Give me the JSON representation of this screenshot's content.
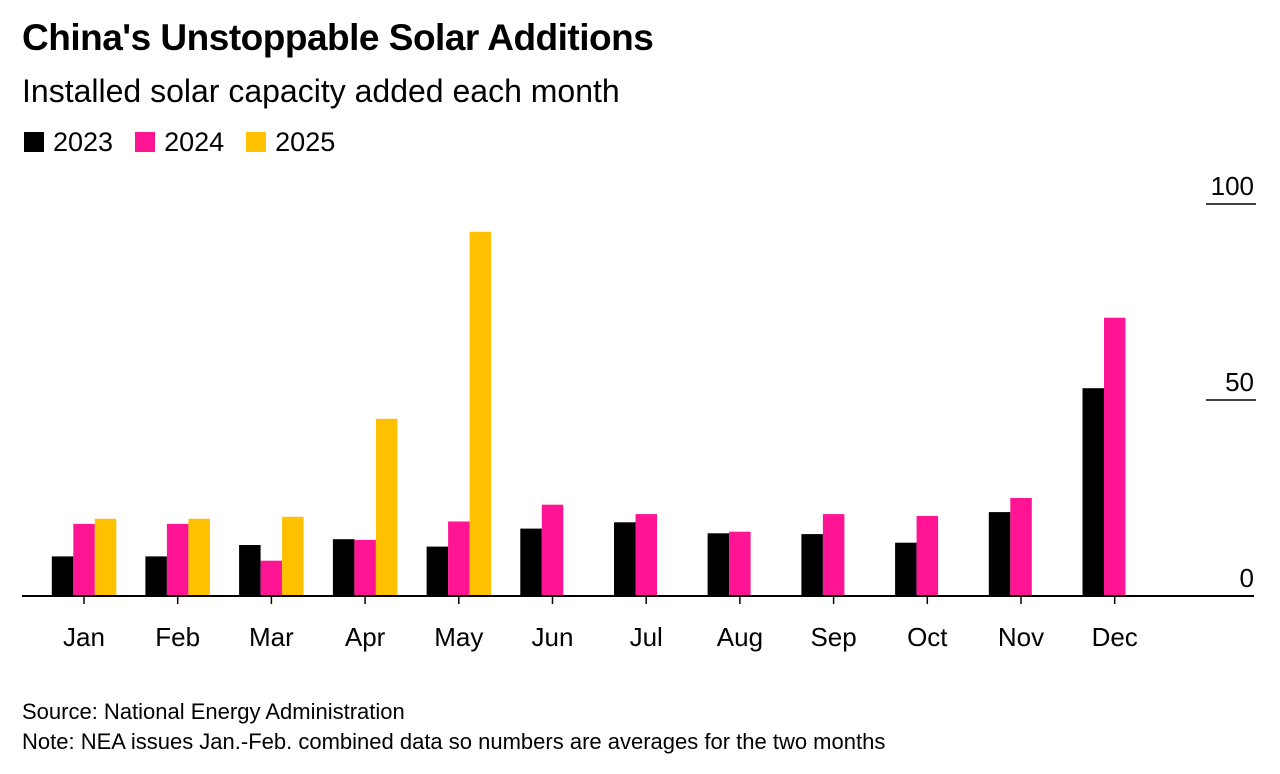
{
  "title": "China's Unstoppable Solar Additions",
  "subtitle": "Installed solar capacity added each month",
  "legend": [
    {
      "label": "2023",
      "color": "#000000"
    },
    {
      "label": "2024",
      "color": "#ff1493"
    },
    {
      "label": "2025",
      "color": "#ffc000"
    }
  ],
  "source": "Source: National Energy Administration",
  "note": "Note: NEA issues Jan.-Feb. combined data so numbers are averages for the two months",
  "chart_data": {
    "type": "bar",
    "categories": [
      "Jan",
      "Feb",
      "Mar",
      "Apr",
      "May",
      "Jun",
      "Jul",
      "Aug",
      "Sep",
      "Oct",
      "Nov",
      "Dec"
    ],
    "series": [
      {
        "name": "2023",
        "color": "#000000",
        "values": [
          10.1,
          10.1,
          13.0,
          14.5,
          12.6,
          17.2,
          18.8,
          16.0,
          15.8,
          13.6,
          21.4,
          53.0
        ]
      },
      {
        "name": "2024",
        "color": "#ff1493",
        "values": [
          18.4,
          18.4,
          9.0,
          14.3,
          19.0,
          23.3,
          20.9,
          16.4,
          20.9,
          20.4,
          25.0,
          71.0
        ]
      },
      {
        "name": "2025",
        "color": "#ffc000",
        "values": [
          19.7,
          19.7,
          20.2,
          45.2,
          92.9,
          null,
          null,
          null,
          null,
          null,
          null,
          null
        ]
      }
    ],
    "ylim": [
      0,
      100
    ],
    "yticks": [
      0,
      50,
      100
    ],
    "ytick_labels": [
      "0",
      "50",
      "100"
    ],
    "axis_position": "right",
    "grid": false,
    "legend_position": "top-left"
  }
}
